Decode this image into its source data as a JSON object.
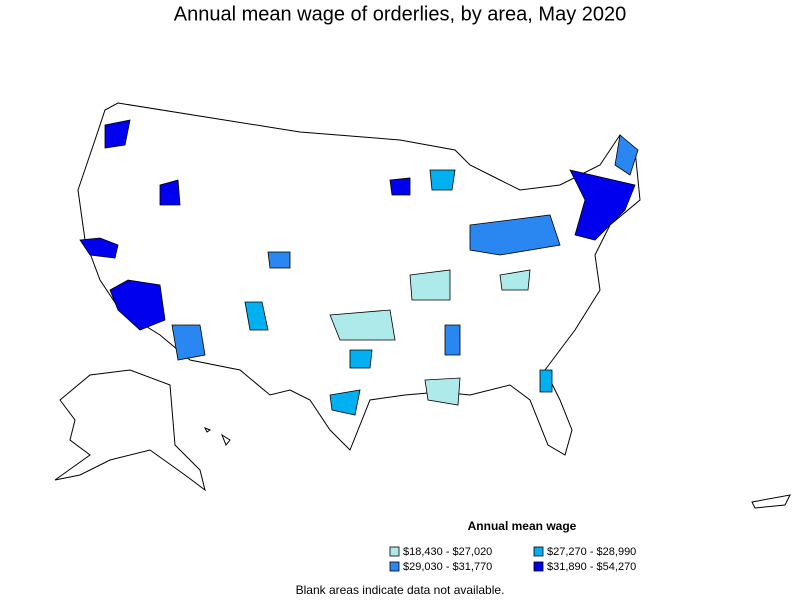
{
  "title": "Annual mean wage of orderlies, by area, May 2020",
  "legend": {
    "title": "Annual mean wage",
    "items": [
      {
        "label": "$18,430 - $27,020",
        "color": "#aeeaea"
      },
      {
        "label": "$27,270 - $28,990",
        "color": "#00b0f0"
      },
      {
        "label": "$29,030 - $31,770",
        "color": "#2a86f0"
      },
      {
        "label": "$31,890 - $54,270",
        "color": "#0000ee"
      }
    ]
  },
  "note": "Blank areas indicate data not available."
}
